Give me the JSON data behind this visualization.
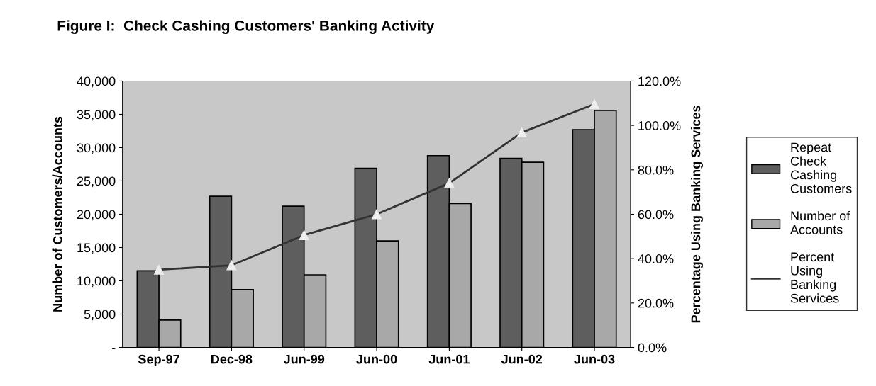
{
  "chart_data": {
    "type": "bar",
    "title": "Figure I:  Check Cashing Customers' Banking Activity",
    "categories": [
      "Sep-97",
      "Dec-98",
      "Jun-99",
      "Jun-00",
      "Jun-01",
      "Jun-02",
      "Jun-03"
    ],
    "series": [
      {
        "name": "Repeat Check Cashing Customers",
        "color": "#5e5e5e",
        "values": [
          11500,
          22700,
          21200,
          26900,
          28800,
          28400,
          32700
        ]
      },
      {
        "name": "Number of Accounts",
        "color": "#a8a8a8",
        "values": [
          4100,
          8700,
          10900,
          16000,
          21600,
          27800,
          35600
        ]
      },
      {
        "name": "Percent Using Banking Services",
        "type": "line",
        "axis": "y2",
        "color": "#333333",
        "marker": "triangle",
        "line_style": "solid",
        "values": [
          35,
          37,
          50.6,
          60,
          74,
          96.8,
          109.6
        ]
      }
    ],
    "ylabel": "Number of Customers/Accounts",
    "y2label": "Percentage Using Banking Services",
    "ylim": [
      0,
      40000
    ],
    "yticks": [
      {
        "value": 0,
        "label": "-"
      },
      {
        "value": 5000,
        "label": "5,000"
      },
      {
        "value": 10000,
        "label": "10,000"
      },
      {
        "value": 15000,
        "label": "15,000"
      },
      {
        "value": 20000,
        "label": "20,000"
      },
      {
        "value": 25000,
        "label": "25,000"
      },
      {
        "value": 30000,
        "label": "30,000"
      },
      {
        "value": 35000,
        "label": "35,000"
      },
      {
        "value": 40000,
        "label": "40,000"
      }
    ],
    "y2lim": [
      0,
      120
    ],
    "y2ticks": [
      {
        "value": 0,
        "label": "0.0%"
      },
      {
        "value": 20,
        "label": "20.0%"
      },
      {
        "value": 40,
        "label": "40.0%"
      },
      {
        "value": 60,
        "label": "60.0%"
      },
      {
        "value": 80,
        "label": "80.0%"
      },
      {
        "value": 100,
        "label": "100.0%"
      },
      {
        "value": 120,
        "label": "120.0%"
      }
    ],
    "grid": false,
    "legend": "right"
  }
}
